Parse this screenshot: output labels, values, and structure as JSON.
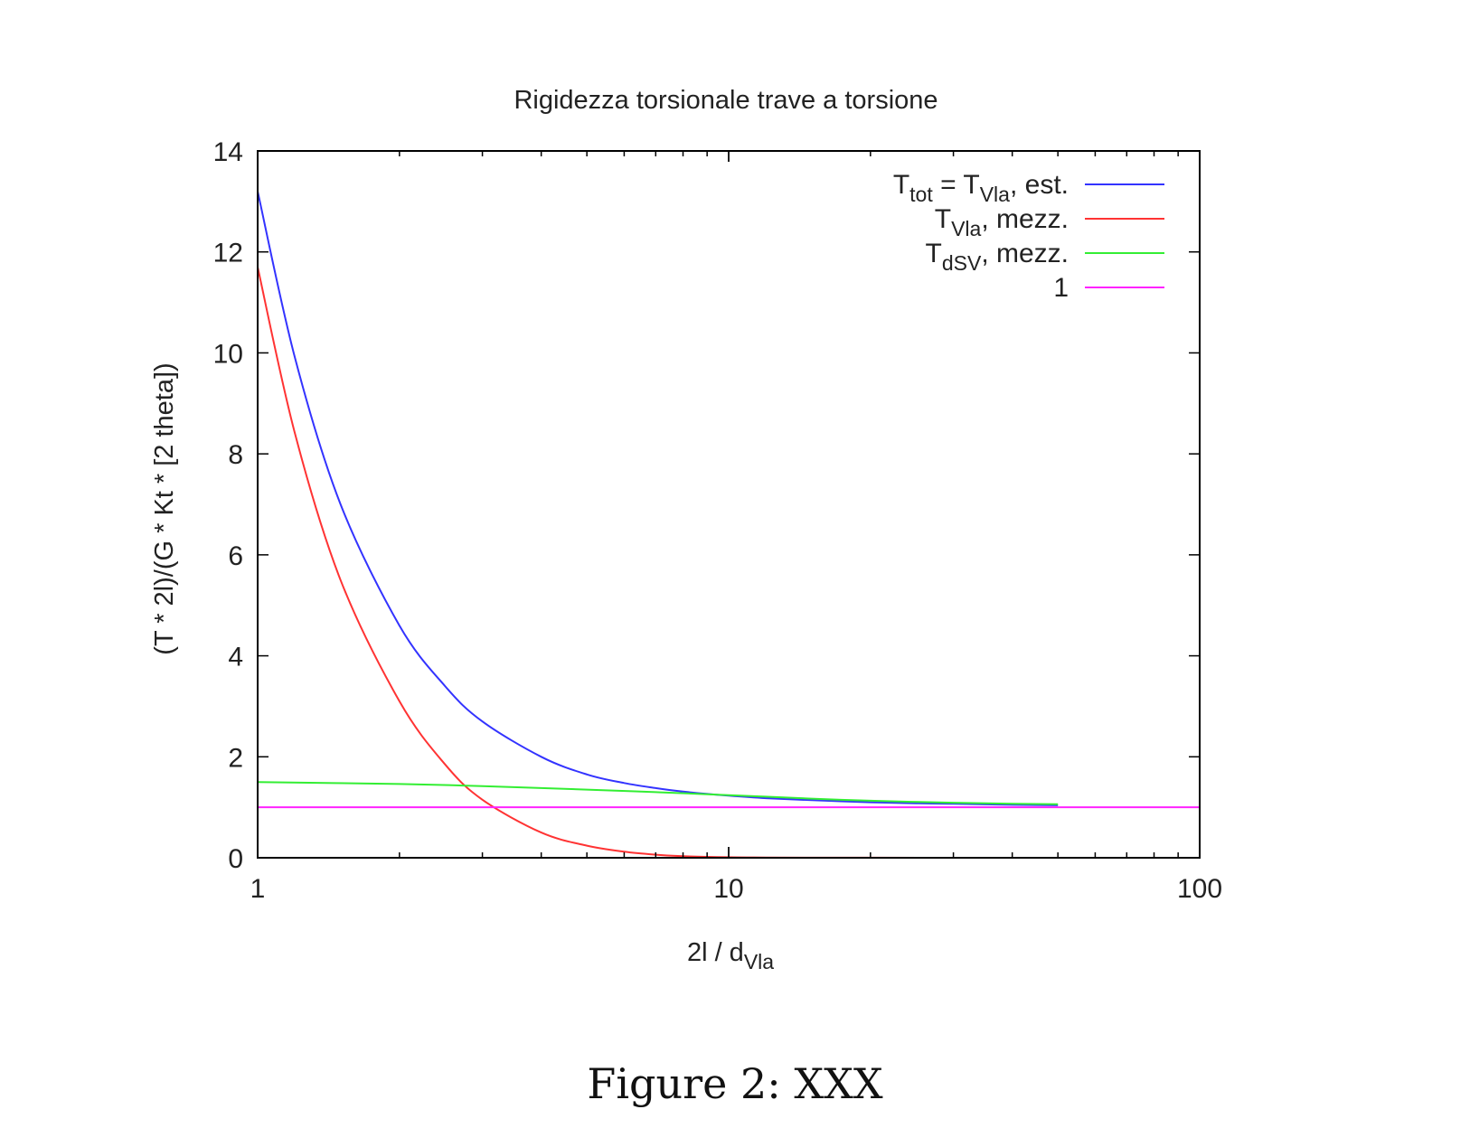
{
  "caption": "Figure 2: XXX",
  "chart_data": {
    "type": "line",
    "title": "Rigidezza torsionale trave a torsione",
    "xlabel": {
      "main": "2l / d",
      "sub": "Vla"
    },
    "ylabel": "(T * 2l)/(G * Kt * [2 theta])",
    "x_scale": "log",
    "xlim": [
      1,
      100
    ],
    "ylim": [
      0,
      14
    ],
    "x_ticks": [
      1,
      10,
      100
    ],
    "x_tick_labels": [
      "1",
      "10",
      "100"
    ],
    "y_ticks": [
      0,
      2,
      4,
      6,
      8,
      10,
      12,
      14
    ],
    "y_tick_labels": [
      "0",
      "2",
      "4",
      "6",
      "8",
      "10",
      "12",
      "14"
    ],
    "grid": false,
    "legend_position": "top-right",
    "series": [
      {
        "name": "T_tot = T_Vla, est.",
        "legend": {
          "main": "T",
          "sub": "tot",
          "rest": " = T",
          "sub2": "Vla",
          "rest2": ", est."
        },
        "color": "#3333ff",
        "x": [
          1,
          1.2,
          1.5,
          2,
          2.5,
          3,
          4,
          5,
          6,
          7,
          8,
          10,
          12,
          15,
          20,
          25,
          30,
          40,
          50
        ],
        "y": [
          13.2,
          9.9,
          7.0,
          4.6,
          3.4,
          2.7,
          2.0,
          1.65,
          1.48,
          1.38,
          1.31,
          1.23,
          1.18,
          1.14,
          1.1,
          1.08,
          1.07,
          1.05,
          1.04
        ]
      },
      {
        "name": "T_Vla, mezz.",
        "legend": {
          "main": "T",
          "sub": "Vla",
          "rest": ", mezz."
        },
        "color": "#ff3333",
        "x": [
          1,
          1.2,
          1.5,
          2,
          2.5,
          3,
          4,
          5,
          6,
          7,
          8,
          10,
          12,
          15,
          20,
          30,
          52
        ],
        "y": [
          11.7,
          8.4,
          5.5,
          3.1,
          1.85,
          1.15,
          0.5,
          0.24,
          0.12,
          0.06,
          0.03,
          0.01,
          0.005,
          0.002,
          0.001,
          0.0,
          0.0
        ]
      },
      {
        "name": "T_dSV, mezz.",
        "legend": {
          "main": "T",
          "sub": "dSV",
          "rest": ", mezz."
        },
        "color": "#33ee33",
        "x": [
          1,
          2,
          3,
          5,
          7,
          10,
          15,
          20,
          30,
          40,
          50
        ],
        "y": [
          1.5,
          1.46,
          1.42,
          1.35,
          1.3,
          1.24,
          1.17,
          1.13,
          1.09,
          1.07,
          1.06
        ]
      },
      {
        "name": "1",
        "legend": {
          "main": "1"
        },
        "color": "#ff22ff",
        "x": [
          1,
          100
        ],
        "y": [
          1,
          1
        ]
      }
    ]
  }
}
